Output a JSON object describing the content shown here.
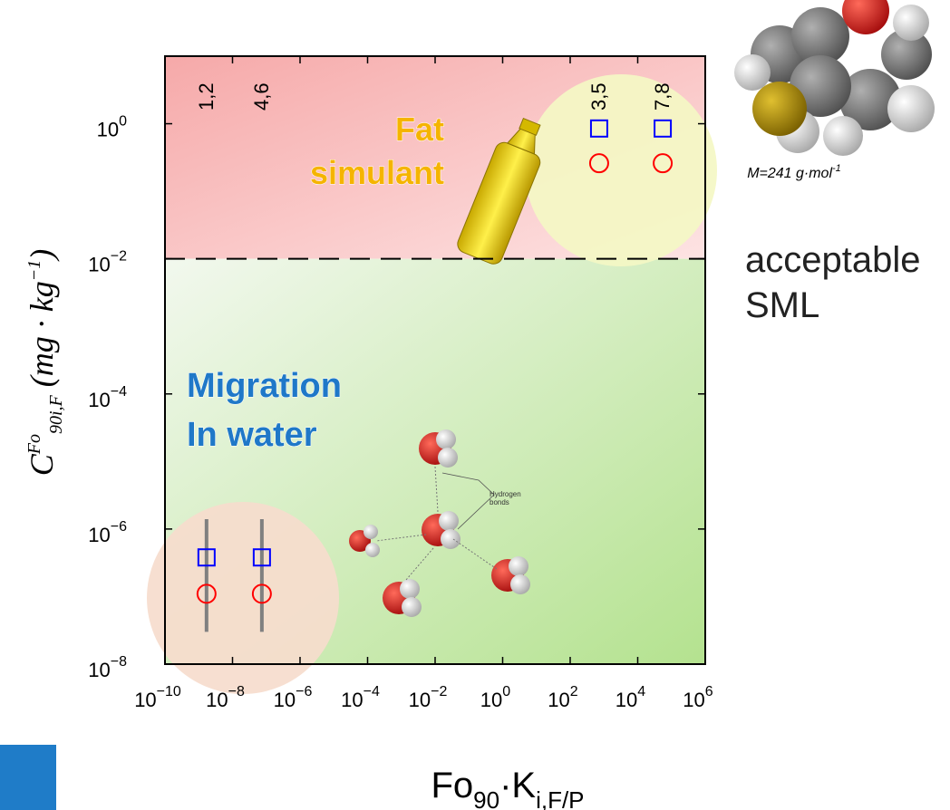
{
  "chart_data": {
    "type": "scatter",
    "xlog": true,
    "ylog": true,
    "xlim": [
      1e-10,
      1000000.0
    ],
    "ylim": [
      1e-08,
      10
    ],
    "xticks": [
      {
        "value": 1e-10,
        "label": "10",
        "exponent": "−10"
      },
      {
        "value": 1e-08,
        "label": "10",
        "exponent": "−8"
      },
      {
        "value": 1e-06,
        "label": "10",
        "exponent": "−6"
      },
      {
        "value": 0.0001,
        "label": "10",
        "exponent": "−4"
      },
      {
        "value": 0.01,
        "label": "10",
        "exponent": "−2"
      },
      {
        "value": 1,
        "label": "10",
        "exponent": "0"
      },
      {
        "value": 100,
        "label": "10",
        "exponent": "2"
      },
      {
        "value": 10000,
        "label": "10",
        "exponent": "4"
      },
      {
        "value": 1000000,
        "label": "10",
        "exponent": "6"
      }
    ],
    "yticks": [
      {
        "value": 1,
        "label": "10",
        "exponent": "0"
      },
      {
        "value": 0.01,
        "label": "10",
        "exponent": "−2"
      },
      {
        "value": 0.0001,
        "label": "10",
        "exponent": "−4"
      },
      {
        "value": 1e-06,
        "label": "10",
        "exponent": "−6"
      },
      {
        "value": 1e-08,
        "label": "10",
        "exponent": "−8"
      }
    ],
    "xlabel": [
      {
        "text": "Fo",
        "pos": "base"
      },
      {
        "text": "90",
        "pos": "sub"
      },
      {
        "text": "·K",
        "pos": "base"
      },
      {
        "text": "i,F/P",
        "pos": "sub"
      }
    ],
    "ylabel": [
      {
        "text": "C",
        "pos": "base"
      },
      {
        "text": "Fo",
        "pos": "sup"
      },
      {
        "text": "90",
        "pos": "sub"
      },
      {
        "text": "i,F",
        "pos": "sub"
      },
      {
        "text": " (mg · kg",
        "pos": "base"
      },
      {
        "text": "−1",
        "pos": "sup"
      },
      {
        "text": ")",
        "pos": "base"
      }
    ],
    "x": [
      1.7e-09,
      7.4e-08,
      720,
      55000
    ],
    "point_labels": [
      "1,2",
      "4,6",
      "3,5",
      "7,8"
    ],
    "series": [
      {
        "marker": "square",
        "color": "#0000ff",
        "values": [
          3.8e-07,
          3.8e-07,
          0.85,
          0.85
        ]
      },
      {
        "marker": "circle",
        "color": "#ff0000",
        "values": [
          1.1e-07,
          1.1e-07,
          0.26,
          0.26
        ]
      }
    ],
    "ranges": {
      "color": "#808080",
      "high": [
        1.4e-06,
        1.4e-06,
        null,
        null
      ],
      "low": [
        3e-08,
        3e-08,
        null,
        null
      ]
    },
    "threshold": {
      "value": 0.01,
      "label": [
        "acceptable",
        "SML"
      ]
    },
    "annotations": {
      "fat": [
        "Fat",
        "simulant"
      ],
      "water": [
        "Migration",
        "In water"
      ],
      "molar_mass": [
        "M=241 g·mol",
        "-1"
      ],
      "hbonds": [
        "Hydrogen",
        "bonds"
      ]
    }
  }
}
